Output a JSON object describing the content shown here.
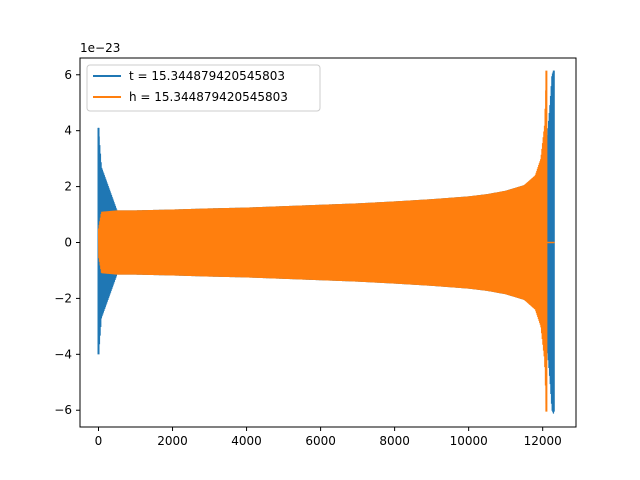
{
  "chart_data": {
    "type": "line",
    "title": "",
    "xlabel": "",
    "ylabel": "",
    "y_offset_text": "1e−23",
    "xlim": [
      -500,
      12900
    ],
    "ylim": [
      -6.6,
      6.6
    ],
    "xticks": [
      0,
      2000,
      4000,
      6000,
      8000,
      10000,
      12000
    ],
    "xtick_labels": [
      "0",
      "2000",
      "4000",
      "6000",
      "8000",
      "10000",
      "12000"
    ],
    "yticks": [
      -6,
      -4,
      -2,
      0,
      2,
      4,
      6
    ],
    "ytick_labels": [
      "−6",
      "−4",
      "−2",
      "0",
      "2",
      "4",
      "6"
    ],
    "grid": false,
    "legend_position": "top-left",
    "series": [
      {
        "name": "t = 15.344879420545803",
        "color": "#1f77b4",
        "envelope_x": [
          0,
          80,
          500,
          1000,
          2000,
          3000,
          4000,
          5000,
          6000,
          7000,
          8000,
          9000,
          10000,
          10500,
          11000,
          11500,
          11800,
          12000,
          12100,
          12150,
          12200,
          12250,
          12300
        ],
        "envelope_y": [
          4.1,
          2.7,
          1.15,
          1.15,
          1.18,
          1.22,
          1.25,
          1.3,
          1.35,
          1.4,
          1.47,
          1.55,
          1.65,
          1.73,
          1.85,
          2.05,
          2.3,
          2.8,
          3.5,
          4.2,
          5.0,
          6.0,
          6.15
        ],
        "spikes": [
          {
            "x": 0,
            "min": -4.0,
            "max": 4.1
          },
          {
            "x": 12300,
            "min": -6.05,
            "max": 6.15
          }
        ]
      },
      {
        "name": "h = 15.344879420545803",
        "color": "#ff7f0e",
        "envelope_x": [
          0,
          80,
          500,
          1000,
          2000,
          3000,
          4000,
          5000,
          6000,
          7000,
          8000,
          9000,
          10000,
          10500,
          11000,
          11500,
          11800,
          11950,
          12050,
          12100
        ],
        "envelope_y": [
          0.5,
          1.1,
          1.15,
          1.15,
          1.18,
          1.22,
          1.25,
          1.3,
          1.35,
          1.4,
          1.47,
          1.55,
          1.65,
          1.73,
          1.85,
          2.05,
          2.4,
          3.0,
          4.2,
          6.1
        ],
        "spikes": [
          {
            "x": 12100,
            "min": -6.05,
            "max": 6.15
          }
        ],
        "flat_after": [
          12100,
          12320
        ]
      }
    ]
  }
}
